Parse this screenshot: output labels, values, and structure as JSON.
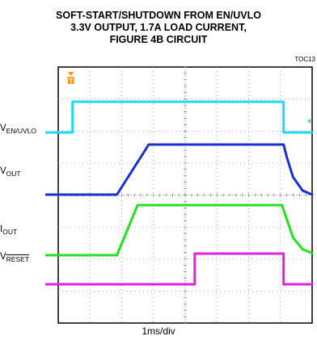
{
  "title_lines": [
    "SOFT-START/SHUTDOWN FROM EN/UVLO",
    "3.3V OUTPUT, 1.7A LOAD CURRENT,",
    "FIGURE 4B CIRCUIT"
  ],
  "toc": "TOC13",
  "xlabel": "1ms/div",
  "trigger_marker": "T",
  "colors": {
    "en": "#22d8ee",
    "vout": "#1b2fd0",
    "iout": "#22e020",
    "reset": "#e020e0",
    "grid": "#9a9a9a"
  },
  "chart_data": {
    "type": "line",
    "title": "SOFT-START/SHUTDOWN FROM EN/UVLO 3.3V OUTPUT, 1.7A LOAD CURRENT, FIGURE 4B CIRCUIT",
    "xlabel": "1ms/div",
    "x_divisions": 8,
    "y_divisions": 8,
    "grid": true,
    "series": [
      {
        "name": "EN/UVLO",
        "label_main": "V",
        "label_sub": "EN/UVLO",
        "points": [
          [
            0,
            0
          ],
          [
            0.45,
            0
          ],
          [
            0.45,
            1
          ],
          [
            7.1,
            1
          ],
          [
            7.1,
            0
          ],
          [
            8,
            0
          ]
        ]
      },
      {
        "name": "OUT",
        "label_main": "V",
        "label_sub": "OUT",
        "points": [
          [
            0,
            0
          ],
          [
            1.85,
            0
          ],
          [
            2.85,
            1
          ],
          [
            7.1,
            1
          ],
          [
            7.2,
            0.75
          ],
          [
            7.4,
            0.35
          ],
          [
            7.7,
            0.08
          ],
          [
            8,
            0
          ]
        ]
      },
      {
        "name": "OUT",
        "label_main": "I",
        "label_sub": "OUT",
        "points": [
          [
            0,
            0
          ],
          [
            1.85,
            0
          ],
          [
            2.5,
            1
          ],
          [
            7.05,
            1
          ],
          [
            7.2,
            0.72
          ],
          [
            7.4,
            0.35
          ],
          [
            7.7,
            0.12
          ],
          [
            8,
            0.04
          ]
        ]
      },
      {
        "name": "RESET",
        "label_main": "V",
        "label_sub": "RESET",
        "points": [
          [
            0,
            0
          ],
          [
            4.3,
            0
          ],
          [
            4.3,
            1
          ],
          [
            7.1,
            1
          ],
          [
            7.1,
            0
          ],
          [
            8,
            0
          ]
        ]
      }
    ]
  }
}
